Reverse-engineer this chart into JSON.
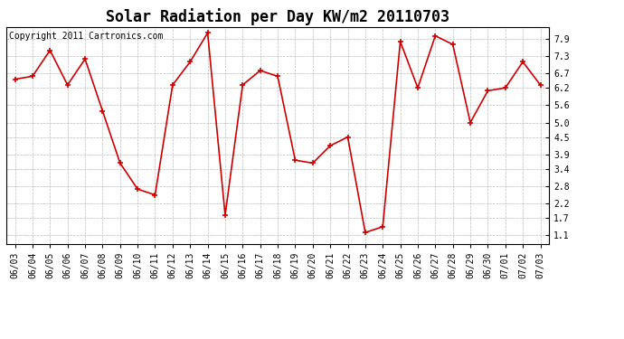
{
  "title": "Solar Radiation per Day KW/m2 20110703",
  "copyright_text": "Copyright 2011 Cartronics.com",
  "dates": [
    "06/03",
    "06/04",
    "06/05",
    "06/06",
    "06/07",
    "06/08",
    "06/09",
    "06/10",
    "06/11",
    "06/12",
    "06/13",
    "06/14",
    "06/15",
    "06/16",
    "06/17",
    "06/18",
    "06/19",
    "06/20",
    "06/21",
    "06/22",
    "06/23",
    "06/24",
    "06/25",
    "06/26",
    "06/27",
    "06/28",
    "06/29",
    "06/30",
    "07/01",
    "07/02",
    "07/03"
  ],
  "values": [
    6.5,
    6.6,
    7.5,
    6.3,
    7.2,
    5.4,
    3.6,
    2.7,
    2.5,
    6.3,
    7.1,
    8.1,
    1.8,
    6.3,
    6.8,
    6.6,
    3.7,
    3.6,
    4.2,
    4.5,
    1.2,
    1.4,
    7.8,
    6.2,
    8.0,
    7.7,
    5.0,
    6.1,
    6.2,
    7.1,
    6.3
  ],
  "line_color": "#cc0000",
  "marker": "+",
  "marker_size": 5,
  "bg_color": "#ffffff",
  "plot_bg_color": "#ffffff",
  "grid_color": "#bbbbbb",
  "yticks": [
    1.1,
    1.7,
    2.2,
    2.8,
    3.4,
    3.9,
    4.5,
    5.0,
    5.6,
    6.2,
    6.7,
    7.3,
    7.9
  ],
  "ylim": [
    0.8,
    8.3
  ],
  "title_fontsize": 12,
  "copyright_fontsize": 7,
  "tick_fontsize": 7,
  "ytick_fontsize": 7
}
